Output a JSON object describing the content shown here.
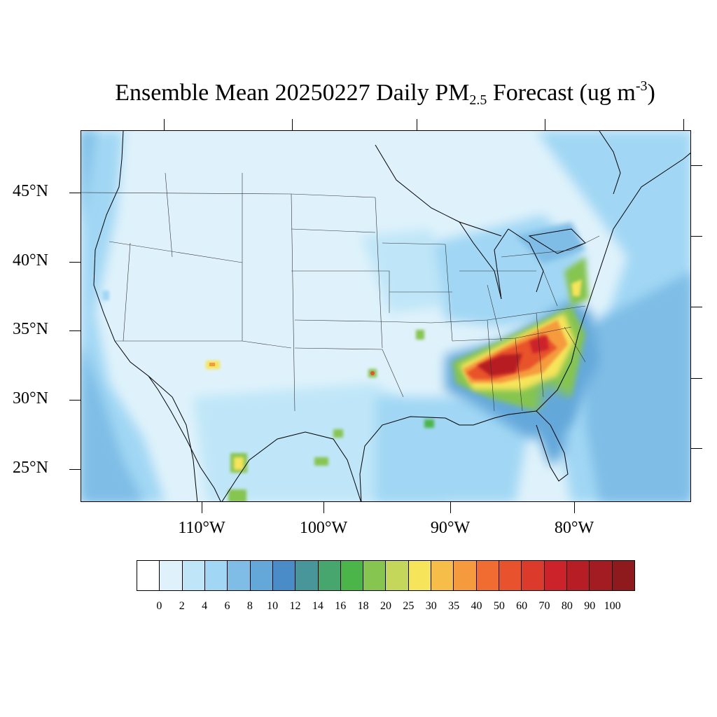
{
  "title": {
    "prefix": "Ensemble Mean 20250227 Daily PM",
    "subscript": "2.5",
    "middle": " Forecast (ug m",
    "superscript": "-3",
    "suffix": ")"
  },
  "map": {
    "lat_labels": [
      "45°N",
      "40°N",
      "35°N",
      "30°N",
      "25°N"
    ],
    "lon_labels": [
      "110°W",
      "100°W",
      "90°W",
      "80°W"
    ],
    "background_color": "#dff2fb"
  },
  "colorbar": {
    "labels": [
      "0",
      "2",
      "4",
      "6",
      "8",
      "10",
      "12",
      "14",
      "16",
      "18",
      "20",
      "25",
      "30",
      "35",
      "40",
      "50",
      "60",
      "70",
      "80",
      "90",
      "100"
    ],
    "colors": [
      "#ffffff",
      "#dff2fb",
      "#bfe6f8",
      "#a1d7f4",
      "#7fbde6",
      "#64a8da",
      "#4a8cc8",
      "#49969a",
      "#47a56e",
      "#4cb549",
      "#86c54f",
      "#c4d75a",
      "#f6e45a",
      "#f7bd49",
      "#f59b3e",
      "#f16c30",
      "#e8522c",
      "#dc3a2a",
      "#cc2229",
      "#b61d24",
      "#a21c22",
      "#8f1a1d"
    ]
  }
}
